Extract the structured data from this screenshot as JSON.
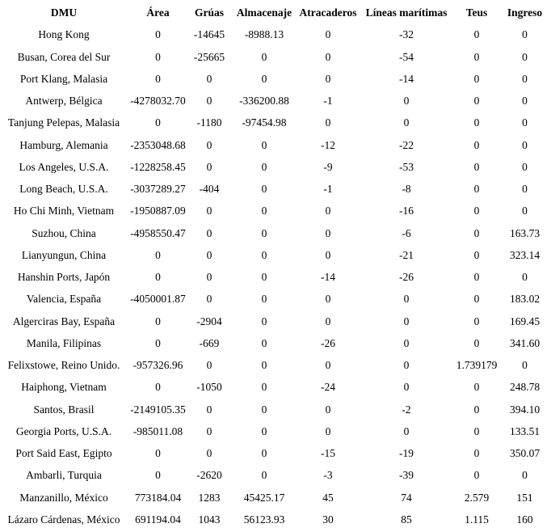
{
  "table": {
    "columns": [
      "DMU",
      "Área",
      "Grúas",
      "Almacenaje",
      "Atracaderos",
      "Líneas marítimas",
      "Teus",
      "Ingreso"
    ],
    "rows": [
      [
        "Hong Kong",
        "0",
        "-14645",
        "-8988.13",
        "0",
        "-32",
        "0",
        "0"
      ],
      [
        "Busan, Corea del Sur",
        "0",
        "-25665",
        "0",
        "0",
        "-54",
        "0",
        "0"
      ],
      [
        "Port Klang, Malasia",
        "0",
        "0",
        "0",
        "0",
        "-14",
        "0",
        "0"
      ],
      [
        "Antwerp, Bélgica",
        "-4278032.70",
        "0",
        "-336200.88",
        "-1",
        "0",
        "0",
        "0"
      ],
      [
        "Tanjung Pelepas, Malasia",
        "0",
        "-1180",
        "-97454.98",
        "0",
        "0",
        "0",
        "0"
      ],
      [
        "Hamburg, Alemania",
        "-2353048.68",
        "0",
        "0",
        "-12",
        "-22",
        "0",
        "0"
      ],
      [
        "Los Angeles, U.S.A.",
        "-1228258.45",
        "0",
        "0",
        "-9",
        "-53",
        "0",
        "0"
      ],
      [
        "Long Beach, U.S.A.",
        "-3037289.27",
        "-404",
        "0",
        "-1",
        "-8",
        "0",
        "0"
      ],
      [
        "Ho Chi Minh, Vietnam",
        "-1950887.09",
        "0",
        "0",
        "0",
        "-16",
        "0",
        "0"
      ],
      [
        "Suzhou, China",
        "-4958550.47",
        "0",
        "0",
        "0",
        "-6",
        "0",
        "163.73"
      ],
      [
        "Lianyungun, China",
        "0",
        "0",
        "0",
        "0",
        "-21",
        "0",
        "323.14"
      ],
      [
        "Hanshin Ports, Japón",
        "0",
        "0",
        "0",
        "-14",
        "-26",
        "0",
        "0"
      ],
      [
        "Valencia, España",
        "-4050001.87",
        "0",
        "0",
        "0",
        "0",
        "0",
        "183.02"
      ],
      [
        "Algerciras Bay, España",
        "0",
        "-2904",
        "0",
        "0",
        "0",
        "0",
        "169.45"
      ],
      [
        "Manila, Filipinas",
        "0",
        "-669",
        "0",
        "-26",
        "0",
        "0",
        "341.60"
      ],
      [
        "Felixstowe, Reino Unido.",
        "-957326.96",
        "0",
        "0",
        "0",
        "0",
        "1.739179",
        "0"
      ],
      [
        "Haiphong, Vietnam",
        "0",
        "-1050",
        "0",
        "-24",
        "0",
        "0",
        "248.78"
      ],
      [
        "Santos, Brasil",
        "-2149105.35",
        "0",
        "0",
        "0",
        "-2",
        "0",
        "394.10"
      ],
      [
        "Georgia Ports, U.S.A.",
        "-985011.08",
        "0",
        "0",
        "0",
        "0",
        "0",
        "133.51"
      ],
      [
        "Port Said East, Egipto",
        "0",
        "0",
        "0",
        "-15",
        "-19",
        "0",
        "350.07"
      ],
      [
        "Ambarli, Turquia",
        "0",
        "-2620",
        "0",
        "-3",
        "-39",
        "0",
        "0"
      ],
      [
        "Manzanillo, México",
        "773184.04",
        "1283",
        "45425.17",
        "45",
        "74",
        "2.579",
        "151"
      ],
      [
        "Lázaro Cárdenas, México",
        "691194.04",
        "1043",
        "56123.93",
        "30",
        "85",
        "1.115",
        "160"
      ]
    ]
  }
}
